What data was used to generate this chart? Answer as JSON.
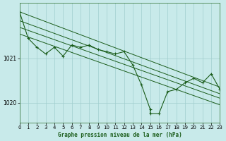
{
  "background_color": "#c8eaea",
  "grid_color": "#a0cece",
  "line_color": "#1a5c1a",
  "title": "Graphe pression niveau de la mer (hPa)",
  "xlim": [
    0,
    23
  ],
  "ylim": [
    1019.55,
    1022.25
  ],
  "yticks": [
    1020,
    1021
  ],
  "xticks": [
    0,
    1,
    2,
    3,
    4,
    5,
    6,
    7,
    8,
    9,
    10,
    11,
    12,
    13,
    14,
    15,
    16,
    17,
    18,
    19,
    20,
    21,
    22,
    23
  ],
  "trend_lines": [
    [
      1022.05,
      1020.35
    ],
    [
      1021.85,
      1020.2
    ],
    [
      1021.7,
      1020.1
    ],
    [
      1021.55,
      1019.95
    ]
  ],
  "main_series_x": [
    0,
    1,
    2,
    3,
    4,
    5,
    6,
    7,
    8,
    9,
    10,
    11,
    12,
    13,
    14,
    15,
    15,
    16,
    17,
    18,
    19,
    20,
    21,
    22,
    23
  ],
  "main_series_y": [
    1022.05,
    1021.45,
    1021.25,
    1021.1,
    1021.25,
    1021.05,
    1021.3,
    1021.25,
    1021.3,
    1021.2,
    1021.15,
    1021.1,
    1021.15,
    1020.85,
    1020.4,
    1019.85,
    1019.75,
    1019.75,
    1020.25,
    1020.3,
    1020.45,
    1020.55,
    1020.45,
    1020.65,
    1020.3
  ]
}
